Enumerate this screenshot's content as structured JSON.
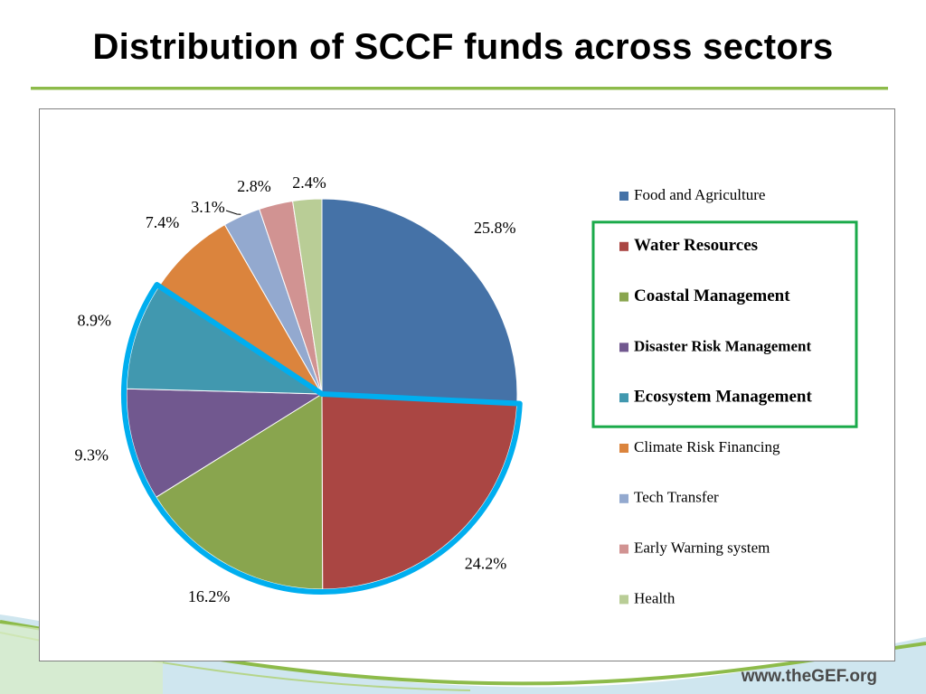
{
  "slide": {
    "title": "Distribution of SCCF funds across sectors",
    "footer_url": "www.theGEF.org"
  },
  "colors": {
    "title_rule": "#8dbb4a",
    "highlight_outline": "#00aeef",
    "legend_highlight_box": "#1aaa4a"
  },
  "chart_data": {
    "type": "pie",
    "title": "",
    "unit": "%",
    "categories": [
      "Food and Agriculture",
      "Water Resources",
      "Coastal Management",
      "Disaster Risk Management",
      "Ecosystem Management",
      "Climate Risk Financing",
      "Tech Transfer",
      "Early Warning  system",
      "Health"
    ],
    "values": [
      25.8,
      24.2,
      16.2,
      9.3,
      8.9,
      7.4,
      3.1,
      2.8,
      2.4
    ],
    "labels": [
      "25.8%",
      "24.2%",
      "16.2%",
      "9.3%",
      "8.9%",
      "7.4%",
      "3.1%",
      "2.8%",
      "2.4%"
    ],
    "slice_colors": [
      "#4572a7",
      "#aa4643",
      "#89a54e",
      "#71588f",
      "#4198af",
      "#db843d",
      "#93a9cf",
      "#d19392",
      "#b9cd96"
    ],
    "legend_position": "right",
    "highlighted_categories": [
      "Water Resources",
      "Coastal Management",
      "Disaster Risk Management",
      "Ecosystem Management"
    ],
    "bold_legend_entries": [
      "Water Resources",
      "Coastal Management",
      "Disaster Risk Management",
      "Ecosystem Management"
    ]
  }
}
